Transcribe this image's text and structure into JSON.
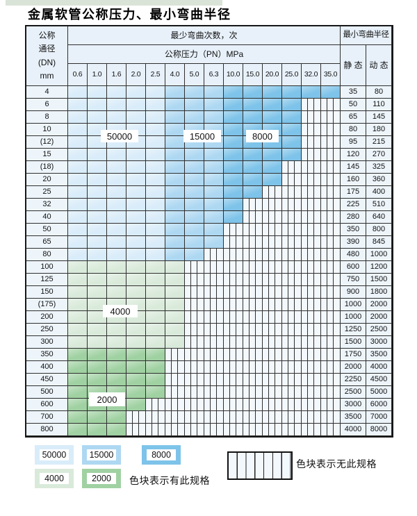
{
  "title": "金属软管公称压力、最小弯曲半径",
  "colors": {
    "cycles_50000": "#d9ecf9",
    "cycles_15000": "#aed8f2",
    "cycles_8000": "#7ec3e9",
    "cycles_4000": "#d9eada",
    "cycles_2000": "#a0d1a2",
    "hatch_bg": "#f3f8fd",
    "header_bg": "#e8f1fa",
    "label_cell_bg": "#edf5fb",
    "grid_line": "#2e2e2e"
  },
  "table": {
    "header": {
      "dn_lines": [
        "公称",
        "通径",
        "(DN)",
        "mm"
      ],
      "cycles_label": "最少弯曲次数，次",
      "pressure_label": "公称压力（PN）MPa",
      "radius_label": "最小弯曲半径",
      "static_label": "静 态",
      "dynamic_label": "动 态",
      "pressures": [
        "0.6",
        "1.0",
        "1.6",
        "2.0",
        "2.5",
        "4.0",
        "5.0",
        "6.3",
        "10.0",
        "15.0",
        "20.0",
        "25.0",
        "32.0",
        "35.0"
      ]
    },
    "cycle_zones_blue_rows": {
      "0.6-2.5": "50000",
      "4.0-6.3": "15000",
      "10.0-35.0": "8000"
    },
    "rows": [
      {
        "dn": "4",
        "family": "blue",
        "spec_through_col": 13,
        "static": "35",
        "dynamic": "80"
      },
      {
        "dn": "6",
        "family": "blue",
        "spec_through_col": 11,
        "static": "50",
        "dynamic": "110"
      },
      {
        "dn": "8",
        "family": "blue",
        "spec_through_col": 11,
        "static": "65",
        "dynamic": "145"
      },
      {
        "dn": "10",
        "family": "blue",
        "spec_through_col": 11,
        "static": "80",
        "dynamic": "180"
      },
      {
        "dn": "(12)",
        "family": "blue",
        "spec_through_col": 11,
        "static": "95",
        "dynamic": "215"
      },
      {
        "dn": "15",
        "family": "blue",
        "spec_through_col": 11,
        "static": "120",
        "dynamic": "270"
      },
      {
        "dn": "(18)",
        "family": "blue",
        "spec_through_col": 10,
        "static": "145",
        "dynamic": "325"
      },
      {
        "dn": "20",
        "family": "blue",
        "spec_through_col": 10,
        "static": "160",
        "dynamic": "360"
      },
      {
        "dn": "25",
        "family": "blue",
        "spec_through_col": 9,
        "static": "175",
        "dynamic": "400"
      },
      {
        "dn": "32",
        "family": "blue",
        "spec_through_col": 8,
        "static": "225",
        "dynamic": "510"
      },
      {
        "dn": "40",
        "family": "blue",
        "spec_through_col": 8,
        "static": "280",
        "dynamic": "640"
      },
      {
        "dn": "50",
        "family": "blue",
        "spec_through_col": 7,
        "static": "350",
        "dynamic": "800"
      },
      {
        "dn": "65",
        "family": "blue",
        "spec_through_col": 7,
        "static": "390",
        "dynamic": "845"
      },
      {
        "dn": "80",
        "family": "blue",
        "spec_through_col": 6,
        "static": "480",
        "dynamic": "1000"
      },
      {
        "dn": "100",
        "family": "green_4000",
        "spec_through_col": 5,
        "static": "600",
        "dynamic": "1200"
      },
      {
        "dn": "125",
        "family": "green_4000",
        "spec_through_col": 5,
        "static": "750",
        "dynamic": "1500"
      },
      {
        "dn": "150",
        "family": "green_4000",
        "spec_through_col": 5,
        "static": "900",
        "dynamic": "1800"
      },
      {
        "dn": "(175)",
        "family": "green_4000",
        "spec_through_col": 5,
        "static": "1000",
        "dynamic": "2000"
      },
      {
        "dn": "200",
        "family": "green_4000",
        "spec_through_col": 5,
        "static": "1000",
        "dynamic": "2000"
      },
      {
        "dn": "250",
        "family": "green_4000",
        "spec_through_col": 5,
        "static": "1250",
        "dynamic": "2500"
      },
      {
        "dn": "300",
        "family": "green_4000",
        "spec_through_col": 5,
        "static": "1500",
        "dynamic": "3000"
      },
      {
        "dn": "350",
        "family": "green_2000",
        "spec_through_col": 4,
        "static": "1750",
        "dynamic": "3500"
      },
      {
        "dn": "400",
        "family": "green_2000",
        "spec_through_col": 4,
        "static": "2000",
        "dynamic": "4000"
      },
      {
        "dn": "450",
        "family": "green_2000",
        "spec_through_col": 4,
        "static": "2250",
        "dynamic": "4500"
      },
      {
        "dn": "500",
        "family": "green_2000",
        "spec_through_col": 4,
        "static": "2500",
        "dynamic": "5000"
      },
      {
        "dn": "600",
        "family": "green_2000",
        "spec_through_col": 3,
        "static": "3000",
        "dynamic": "6000"
      },
      {
        "dn": "700",
        "family": "green_2000",
        "spec_through_col": 2,
        "static": "3500",
        "dynamic": "7000"
      },
      {
        "dn": "800",
        "family": "green_2000",
        "spec_through_col": 2,
        "static": "4000",
        "dynamic": "8000"
      }
    ],
    "overlay_labels": [
      "50000",
      "15000",
      "8000",
      "4000",
      "2000"
    ]
  },
  "legend": {
    "has_spec_items": [
      {
        "label": "50000",
        "color_key": "cycles_50000"
      },
      {
        "label": "15000",
        "color_key": "cycles_15000"
      },
      {
        "label": "8000",
        "color_key": "cycles_8000"
      },
      {
        "label": "4000",
        "color_key": "cycles_4000"
      },
      {
        "label": "2000",
        "color_key": "cycles_2000"
      }
    ],
    "has_spec_text": "色块表示有此规格",
    "no_spec_text": "色块表示无此规格"
  }
}
